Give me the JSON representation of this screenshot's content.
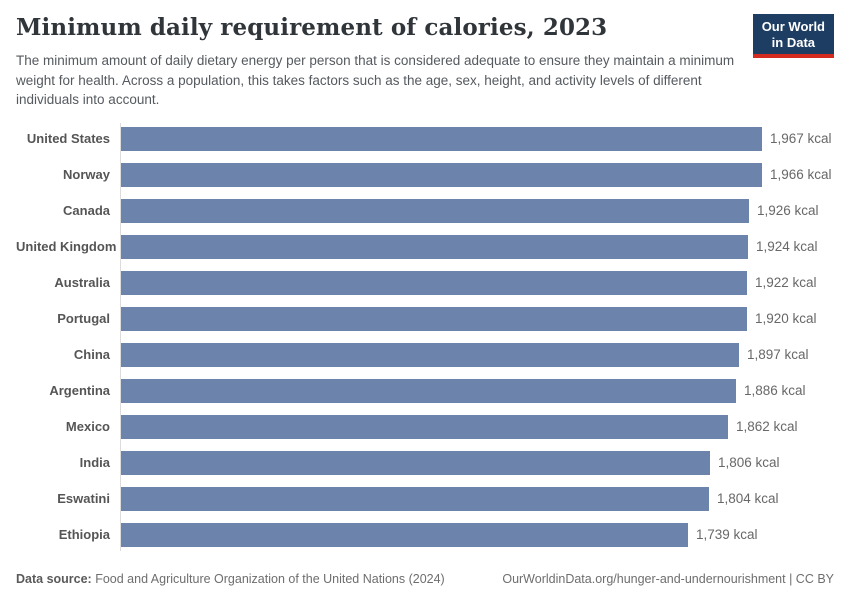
{
  "header": {
    "title": "Minimum daily requirement of calories, 2023",
    "subtitle": "The minimum amount of daily dietary energy per person that is considered adequate to ensure they maintain a minimum weight for health. Across a population, this takes factors such as the age, sex, height, and activity levels of different individuals into account.",
    "logo": {
      "line1": "Our World",
      "line2": "in Data",
      "bg_color": "#1d3d63",
      "accent_color": "#d42b21"
    }
  },
  "chart_data": {
    "type": "bar",
    "orientation": "horizontal",
    "title": "Minimum daily requirement of calories, 2023",
    "unit": "kcal",
    "categories": [
      "United States",
      "Norway",
      "Canada",
      "United Kingdom",
      "Australia",
      "Portugal",
      "China",
      "Argentina",
      "Mexico",
      "India",
      "Eswatini",
      "Ethiopia"
    ],
    "values": [
      1967,
      1966,
      1926,
      1924,
      1922,
      1920,
      1897,
      1886,
      1862,
      1806,
      1804,
      1739
    ],
    "value_labels": [
      "1,967 kcal",
      "1,966 kcal",
      "1,926 kcal",
      "1,924 kcal",
      "1,922 kcal",
      "1,920 kcal",
      "1,897 kcal",
      "1,886 kcal",
      "1,862 kcal",
      "1,806 kcal",
      "1,804 kcal",
      "1,739 kcal"
    ],
    "xlim": [
      0,
      1967
    ],
    "bar_color": "#6c83ac",
    "grid": false,
    "legend": "none"
  },
  "footer": {
    "datasource_label": "Data source:",
    "datasource_text": " Food and Agriculture Organization of the United Nations (2024)",
    "credit": "OurWorldinData.org/hunger-and-undernourishment | CC BY"
  }
}
